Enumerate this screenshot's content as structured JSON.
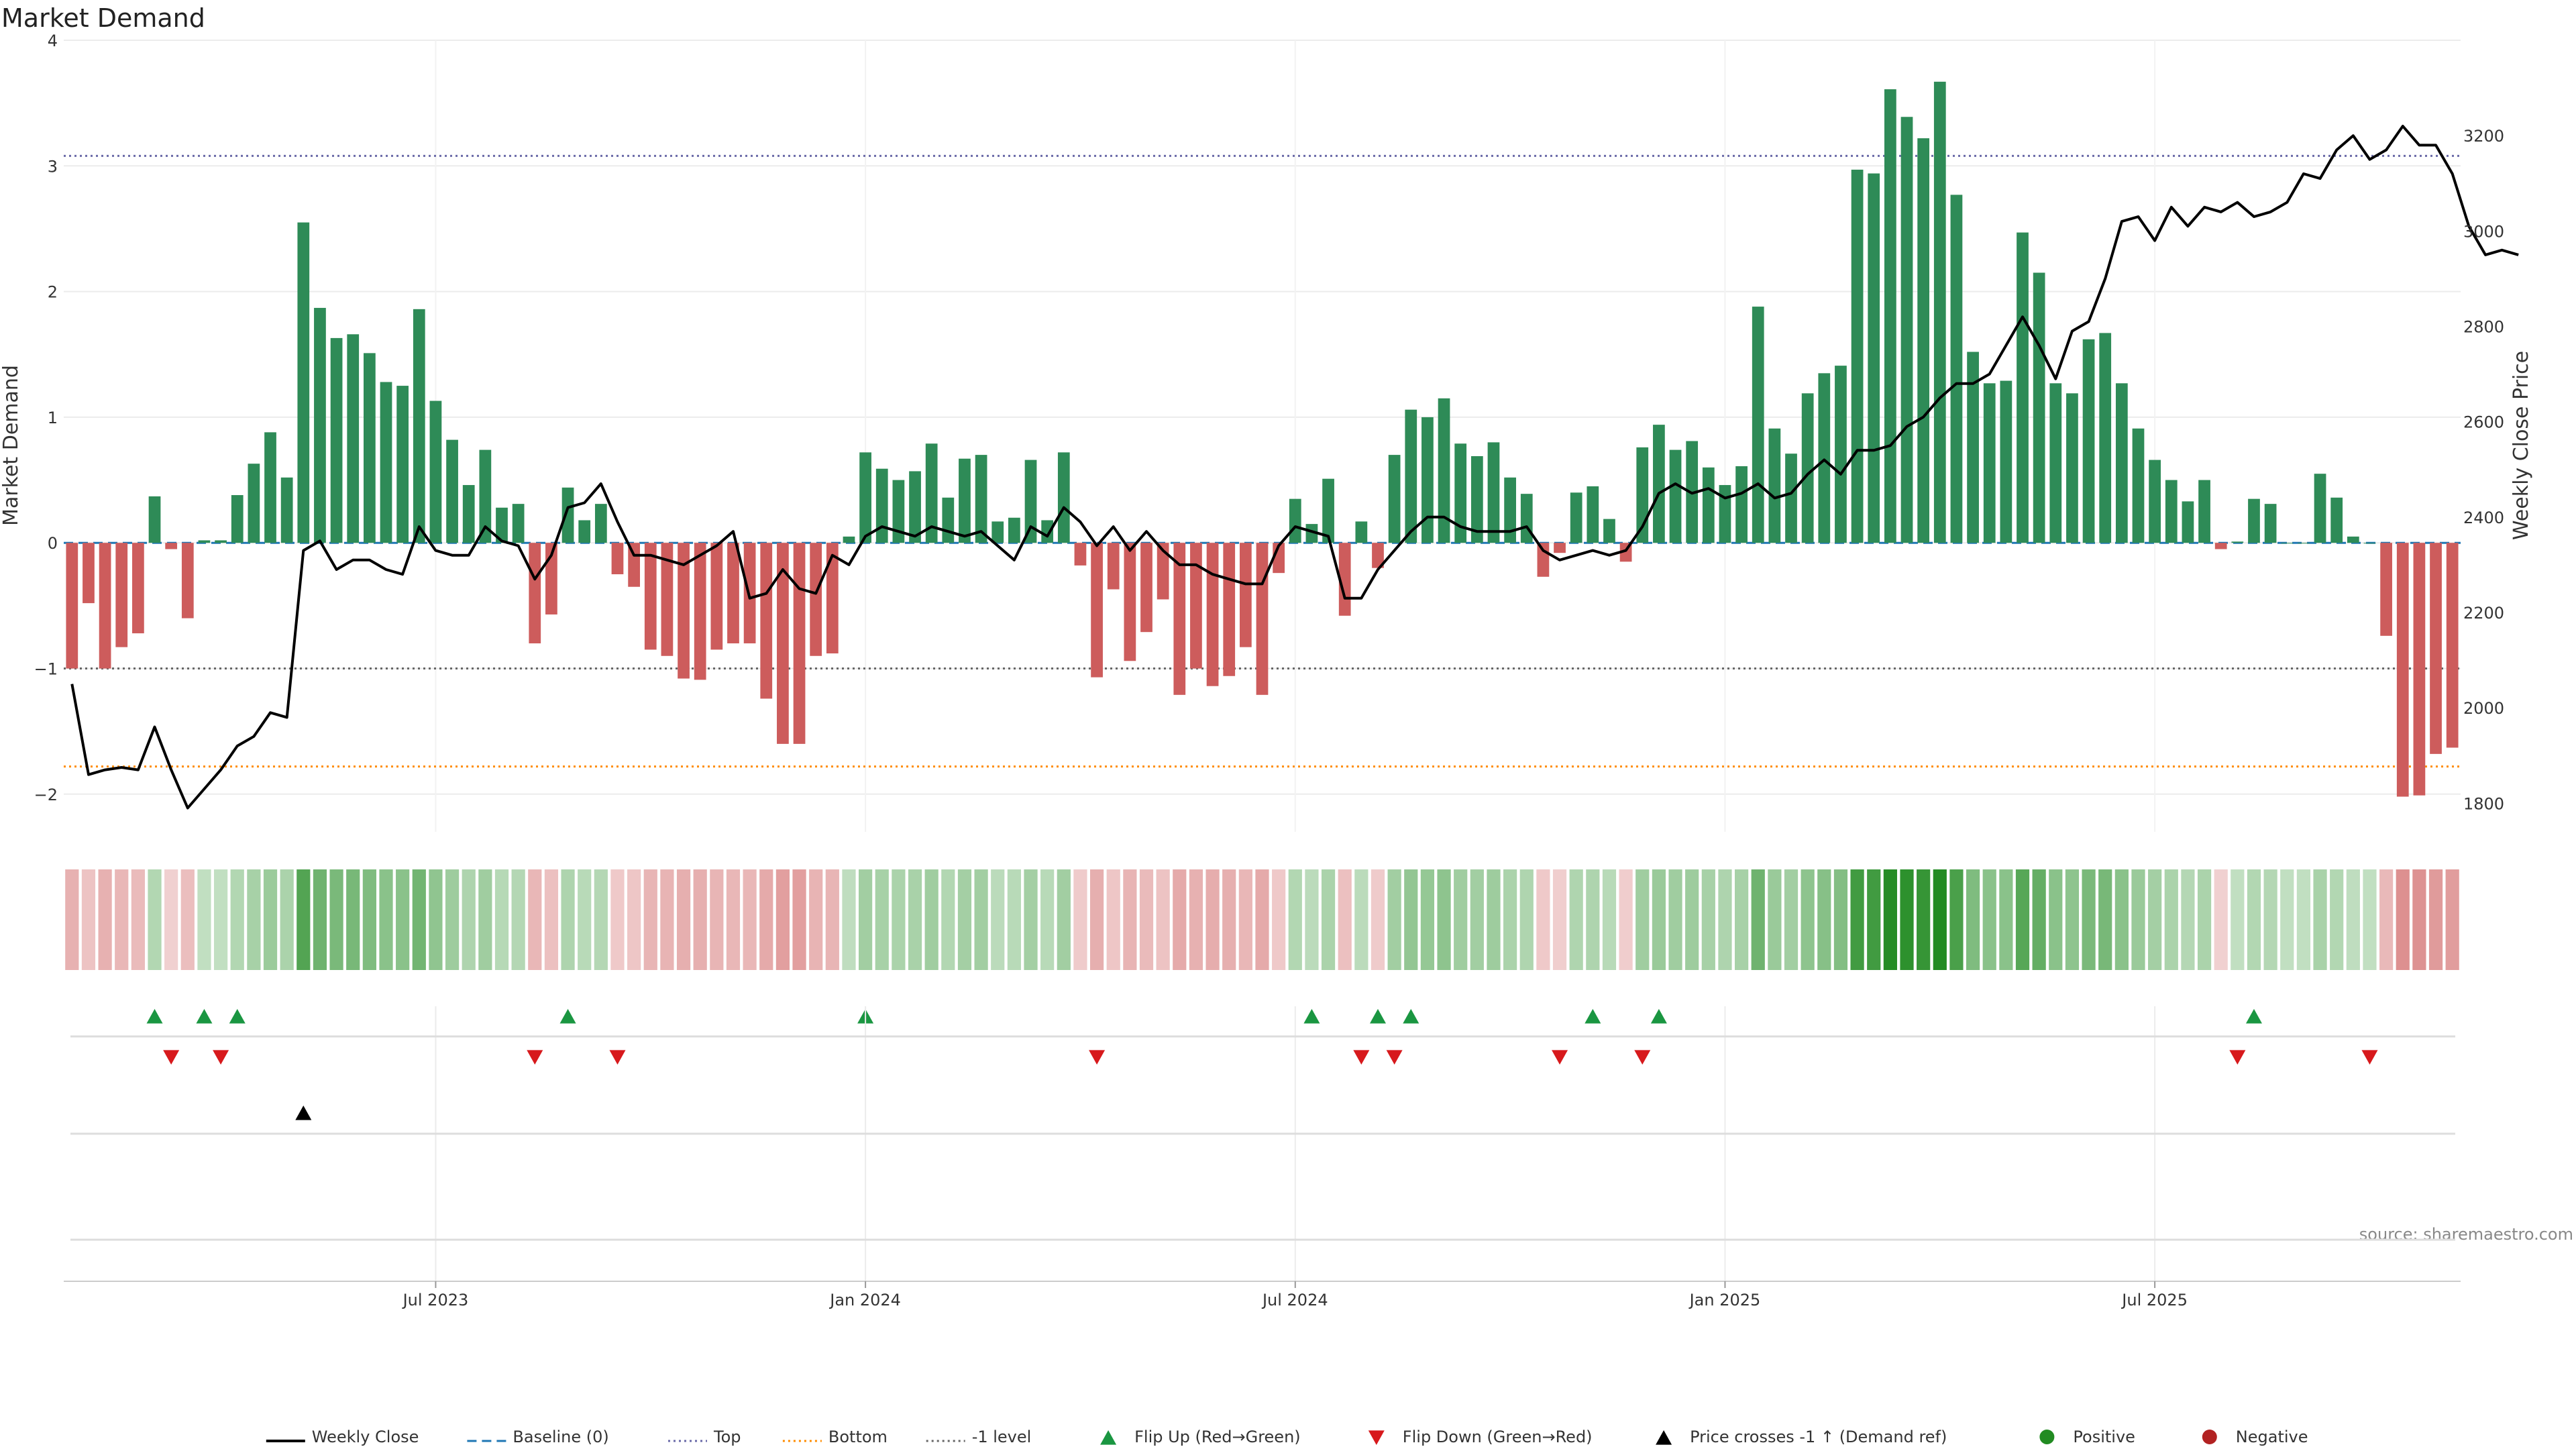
{
  "colors": {
    "positive_bar": "#2e8b57",
    "negative_bar": "#cd5c5c",
    "close_line": "#000000",
    "baseline": "#1f77b4",
    "top_line": "#6a6aa8",
    "bottom_line": "#ff8c00",
    "minus1_line": "#666666",
    "flip_up": "#1a9641",
    "flip_down": "#d7191c",
    "price_cross": "#000000",
    "positive_dot": "#228b22",
    "negative_dot": "#b22222"
  },
  "source": "source: sharemaestro.com",
  "chart_data": {
    "type": "bar",
    "title": "Market Demand",
    "ylabel": "Market Demand",
    "y2label": "Weekly Close Price",
    "ylim": [
      -2.3,
      4.0
    ],
    "y2lim": [
      1740,
      3400
    ],
    "yticks": [
      -2,
      -1,
      0,
      1,
      2,
      3,
      4
    ],
    "y2ticks": [
      1800,
      2000,
      2200,
      2400,
      2600,
      2800,
      3000,
      3200
    ],
    "xticks": [
      {
        "label": "Jul 2023",
        "index": 22
      },
      {
        "label": "Jan 2024",
        "index": 48
      },
      {
        "label": "Jul 2024",
        "index": 74
      },
      {
        "label": "Jan 2025",
        "index": 100
      },
      {
        "label": "Jul 2025",
        "index": 126
      }
    ],
    "top_level": 3.08,
    "bottom_level": -1.78,
    "minus1_level": -1.0,
    "demand": [
      -1.0,
      -0.48,
      -1.0,
      -0.83,
      -0.72,
      0.37,
      -0.05,
      -0.6,
      0.02,
      0.02,
      0.38,
      0.63,
      0.88,
      0.52,
      2.55,
      1.87,
      1.63,
      1.66,
      1.51,
      1.28,
      1.25,
      1.86,
      1.13,
      0.82,
      0.46,
      0.74,
      0.28,
      0.31,
      -0.8,
      -0.57,
      0.44,
      0.18,
      0.31,
      -0.25,
      -0.35,
      -0.85,
      -0.9,
      -1.08,
      -1.09,
      -0.85,
      -0.8,
      -0.8,
      -1.24,
      -1.6,
      -1.6,
      -0.9,
      -0.88,
      0.05,
      0.72,
      0.59,
      0.5,
      0.57,
      0.79,
      0.36,
      0.67,
      0.7,
      0.17,
      0.2,
      0.66,
      0.18,
      0.72,
      -0.18,
      -1.07,
      -0.37,
      -0.94,
      -0.71,
      -0.45,
      -1.21,
      -1.0,
      -1.14,
      -1.06,
      -0.83,
      -1.21,
      -0.24,
      0.35,
      0.15,
      0.51,
      -0.58,
      0.17,
      -0.2,
      0.7,
      1.06,
      1.0,
      1.15,
      0.79,
      0.69,
      0.8,
      0.52,
      0.39,
      -0.27,
      -0.08,
      0.4,
      0.45,
      0.19,
      -0.15,
      0.76,
      0.94,
      0.74,
      0.81,
      0.6,
      0.46,
      0.61,
      1.88,
      0.91,
      0.71,
      1.19,
      1.35,
      1.41,
      2.97,
      2.94,
      3.61,
      3.39,
      3.22,
      3.67,
      2.77,
      1.52,
      1.27,
      1.29,
      2.47,
      2.15,
      1.27,
      1.19,
      1.62,
      1.67,
      1.27,
      0.91,
      0.66,
      0.5,
      0.33,
      0.5,
      -0.05,
      0.01,
      0.35,
      0.31,
      0.0,
      0.0,
      0.55,
      0.36,
      0.05,
      0.0,
      -0.74,
      -2.02,
      -2.01,
      -1.68,
      -1.63
    ],
    "close": [
      2050,
      1860,
      1870,
      1875,
      1870,
      1960,
      1870,
      1790,
      1830,
      1870,
      1920,
      1940,
      1990,
      1980,
      2330,
      2350,
      2290,
      2310,
      2310,
      2290,
      2280,
      2380,
      2330,
      2320,
      2320,
      2380,
      2350,
      2340,
      2270,
      2320,
      2420,
      2430,
      2470,
      2390,
      2320,
      2320,
      2310,
      2300,
      2320,
      2340,
      2370,
      2230,
      2240,
      2290,
      2250,
      2240,
      2320,
      2300,
      2360,
      2380,
      2370,
      2360,
      2380,
      2370,
      2360,
      2370,
      2340,
      2310,
      2380,
      2360,
      2420,
      2390,
      2340,
      2380,
      2330,
      2370,
      2330,
      2300,
      2300,
      2280,
      2270,
      2260,
      2260,
      2340,
      2380,
      2370,
      2360,
      2230,
      2230,
      2290,
      2330,
      2370,
      2400,
      2400,
      2380,
      2370,
      2370,
      2370,
      2380,
      2330,
      2310,
      2320,
      2330,
      2320,
      2330,
      2380,
      2450,
      2470,
      2450,
      2460,
      2440,
      2450,
      2470,
      2440,
      2450,
      2490,
      2520,
      2490,
      2540,
      2540,
      2550,
      2590,
      2610,
      2650,
      2680,
      2680,
      2700,
      2760,
      2820,
      2760,
      2690,
      2790,
      2810,
      2900,
      3020,
      3030,
      2980,
      3050,
      3010,
      3050,
      3040,
      3060,
      3030,
      3040,
      3060,
      3120,
      3110,
      3170,
      3200,
      3150,
      3170,
      3220,
      3180,
      3180,
      3120,
      3010,
      2950,
      2960,
      2950
    ],
    "flip_up_indices": [
      5,
      8,
      10,
      30,
      48,
      75,
      79,
      81,
      92,
      96,
      132
    ],
    "flip_down_indices": [
      6,
      9,
      28,
      33,
      62,
      78,
      80,
      90,
      95,
      131,
      139
    ],
    "price_cross_indices": [
      14
    ],
    "legend": [
      {
        "type": "line",
        "label": "Weekly Close"
      },
      {
        "type": "dash",
        "label": "Baseline (0)"
      },
      {
        "type": "dot-top",
        "label": "Top"
      },
      {
        "type": "dot-bottom",
        "label": "Bottom"
      },
      {
        "type": "dot-minus1",
        "label": "-1 level"
      },
      {
        "type": "tri-up",
        "label": "Flip Up (Red→Green)"
      },
      {
        "type": "tri-down",
        "label": "Flip Down (Green→Red)"
      },
      {
        "type": "tri-black",
        "label": "Price crosses -1 ↑ (Demand ref)"
      },
      {
        "type": "dot-pos",
        "label": "Positive"
      },
      {
        "type": "dot-neg",
        "label": "Negative"
      }
    ]
  }
}
